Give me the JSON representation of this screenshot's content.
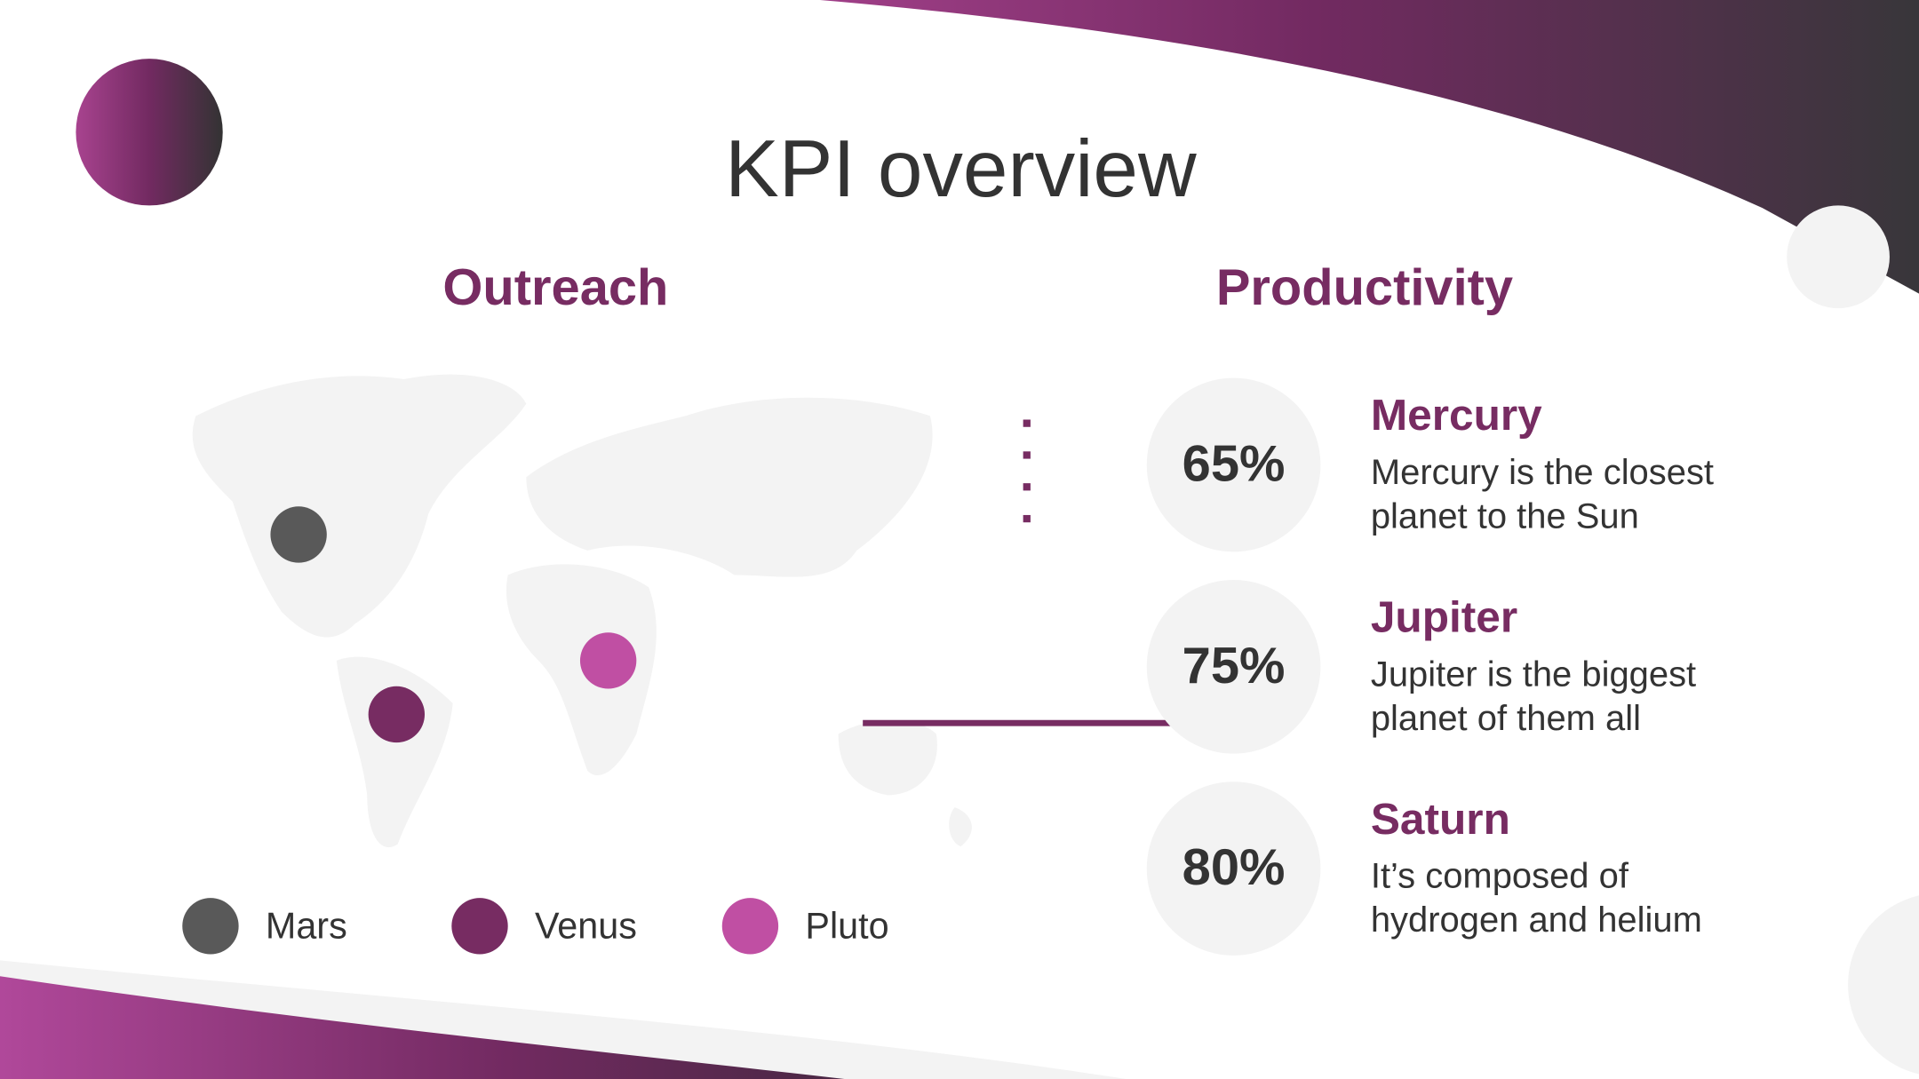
{
  "header": {
    "title": "KPI overview"
  },
  "outreach": {
    "title": "Outreach",
    "legend": [
      "Mars",
      "Venus",
      "Pluto"
    ]
  },
  "productivity": {
    "title": "Productivity",
    "items": [
      {
        "percent": "65%",
        "name": "Mercury",
        "description": [
          "Mercury is the closest",
          "planet to the Sun"
        ]
      },
      {
        "percent": "75%",
        "name": "Jupiter",
        "description": [
          "Jupiter is the biggest",
          "planet of them all"
        ]
      },
      {
        "percent": "80%",
        "name": "Saturn",
        "description": [
          "It’s composed of",
          "hydrogen and helium"
        ]
      }
    ]
  }
}
